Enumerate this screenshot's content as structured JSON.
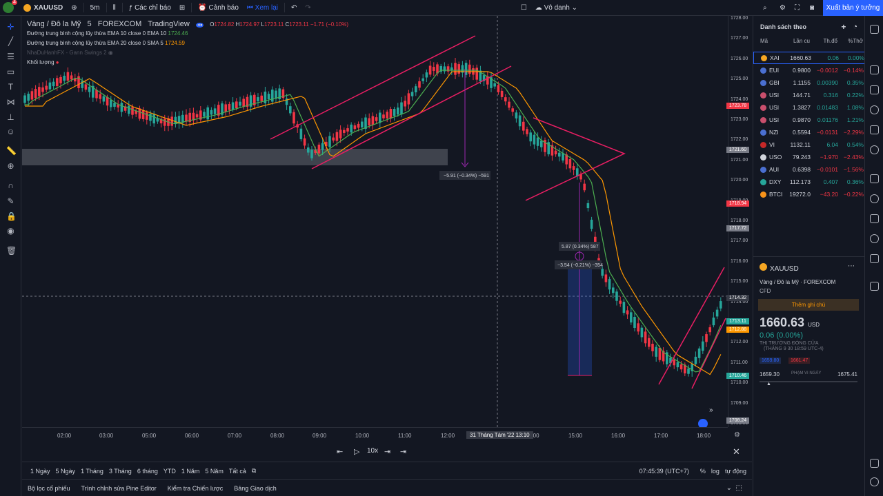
{
  "topbar": {
    "avatar_badge": "4",
    "symbol": "XAUUSD",
    "interval": "5m",
    "indicators_label": "Các chỉ báo",
    "alerts_label": "Cảnh báo",
    "replay_label": "Xem lại",
    "layout_name": "Vô danh",
    "publish_label": "Xuất bản ý tưởng"
  },
  "legend": {
    "title": "Vàng / Đô la Mỹ",
    "interval": "5",
    "exchange": "FOREXCOM",
    "source": "TradingView",
    "o_label": "O",
    "o": "1724.82",
    "h_label": "H",
    "h": "1724.97",
    "l_label": "L",
    "l": "1723.11",
    "c_label": "C",
    "c": "1723.11",
    "change": "−1.71 (−0.10%)",
    "ema10_label": "Đường trung bình cộng lũy thừa EMA 10 close 0 EMA 10",
    "ema10_value": "1724.46",
    "ema20_label": "Đường trung bình cộng lũy thừa EMA 20 close 0 SMA 5",
    "ema20_value": "1724.59",
    "gann_label": "NhaDuHanhFX - Gann Swings 2",
    "volume_label": "Khối lượng"
  },
  "annotations": {
    "measure1": "−5.91 (−0.34%) −591",
    "measure2": "5.87 (0.34%) 587",
    "measure3": "−3.54 (−0.21%) −354"
  },
  "price_axis": {
    "ticks": [
      "1728.00",
      "1727.00",
      "1726.00",
      "1725.00",
      "1724.00",
      "1723.00",
      "1722.00",
      "1721.00",
      "1720.00",
      "1719.00",
      "1718.00",
      "1717.00",
      "1716.00",
      "1715.00",
      "1714.00",
      "1713.00",
      "1712.00",
      "1711.00",
      "1710.00",
      "1709.00",
      "1708.00"
    ],
    "labels": [
      {
        "text": "1723.78",
        "color": "#f23645"
      },
      {
        "text": "1721.60",
        "color": "#787b86"
      },
      {
        "text": "1718.94",
        "color": "#f23645"
      },
      {
        "text": "1717.72",
        "color": "#787b86"
      },
      {
        "text": "1714.32",
        "color": "#363a45"
      },
      {
        "text": "1713.11",
        "color": "#26a69a"
      },
      {
        "text": "1712.88",
        "color": "#ff9800"
      },
      {
        "text": "1710.46",
        "color": "#26a69a"
      },
      {
        "text": "1708.24",
        "color": "#787b86"
      }
    ]
  },
  "time_axis": {
    "ticks": [
      "02:00",
      "03:00",
      "05:00",
      "06:00",
      "07:00",
      "08:00",
      "09:00",
      "10:00",
      "11:00",
      "12:00",
      "4:00",
      "15:00",
      "16:00",
      "17:00",
      "18:00"
    ],
    "cursor_label": "31 Tháng Tám '22   13:10"
  },
  "playbar": {
    "speed": "10x"
  },
  "ranges": [
    "1 Ngày",
    "5 Ngày",
    "1 Tháng",
    "3 Tháng",
    "6 tháng",
    "YTD",
    "1 Năm",
    "5 Năm",
    "Tất cả"
  ],
  "bottom_right": {
    "clock": "07:45:39 (UTC+7)",
    "percent": "%",
    "log": "log",
    "auto": "tự động"
  },
  "footer_tabs": [
    "Bộ lọc cổ phiếu",
    "Trình chỉnh sửa Pine Editor",
    "Kiểm tra Chiến lược",
    "Bảng Giao dịch"
  ],
  "watchlist": {
    "title": "Danh sách theo",
    "col_symbol": "Mã",
    "col_last": "Lần cu",
    "col_change": "Th.đổ",
    "col_pct": "%Thở",
    "rows": [
      {
        "sym": "XAI",
        "last": "1660.63",
        "chg": "0.06",
        "pct": "0.00%",
        "dir": "up",
        "icon": "#f5a623"
      },
      {
        "sym": "EUI",
        "last": "0.9800",
        "chg": "−0.0012",
        "pct": "−0.14%",
        "dir": "dn",
        "icon": "#4a6fd1"
      },
      {
        "sym": "GBI",
        "last": "1.1155",
        "chg": "0.00390",
        "pct": "0.35%",
        "dir": "up",
        "icon": "#4a6fd1"
      },
      {
        "sym": "USI",
        "last": "144.71",
        "chg": "0.316",
        "pct": "0.22%",
        "dir": "up",
        "icon": "#c94f6d"
      },
      {
        "sym": "USI",
        "last": "1.3827",
        "chg": "0.01483",
        "pct": "1.08%",
        "dir": "up",
        "icon": "#c94f6d"
      },
      {
        "sym": "USI",
        "last": "0.9870",
        "chg": "0.01176",
        "pct": "1.21%",
        "dir": "up",
        "icon": "#c94f6d"
      },
      {
        "sym": "NZI",
        "last": "0.5594",
        "chg": "−0.0131",
        "pct": "−2.29%",
        "dir": "dn",
        "icon": "#4a6fd1"
      },
      {
        "sym": "VI",
        "last": "1132.11",
        "chg": "6.04",
        "pct": "0.54%",
        "dir": "up",
        "icon": "#c62828"
      },
      {
        "sym": "USO",
        "last": "79.243",
        "chg": "−1.970",
        "pct": "−2.43%",
        "dir": "dn",
        "icon": "#d1d4dc"
      },
      {
        "sym": "AUI",
        "last": "0.6398",
        "chg": "−0.0101",
        "pct": "−1.56%",
        "dir": "dn",
        "icon": "#4a6fd1"
      },
      {
        "sym": "DXY",
        "last": "112.173",
        "chg": "0.407",
        "pct": "0.36%",
        "dir": "up",
        "icon": "#26a69a"
      },
      {
        "sym": "BTCI",
        "last": "19272.0",
        "chg": "−43.20",
        "pct": "−0.22%",
        "dir": "dn",
        "icon": "#f7931a"
      }
    ]
  },
  "detail": {
    "symbol": "XAUUSD",
    "desc": "Vàng / Đô la Mỹ",
    "exchange": "FOREXCOM",
    "type": "CFD",
    "note_btn": "Thêm ghi chú",
    "price": "1660.63",
    "currency": "USD",
    "change": "0.06 (0.00%)",
    "market_status": "THỊ TRƯỜNG ĐÓNG CỬA",
    "market_time": "(THÁNG 9 30 18:59 UTC-4)",
    "bid": "1659.80",
    "ask": "1661.47",
    "low": "1659.30",
    "range_label": "PHẠM VI NGÀY",
    "high": "1675.41"
  },
  "colors": {
    "up": "#26a69a",
    "down": "#f23645",
    "ema10": "#4caf50",
    "ema20": "#ff9800",
    "trend": "#e91e63",
    "accent": "#2962ff"
  }
}
